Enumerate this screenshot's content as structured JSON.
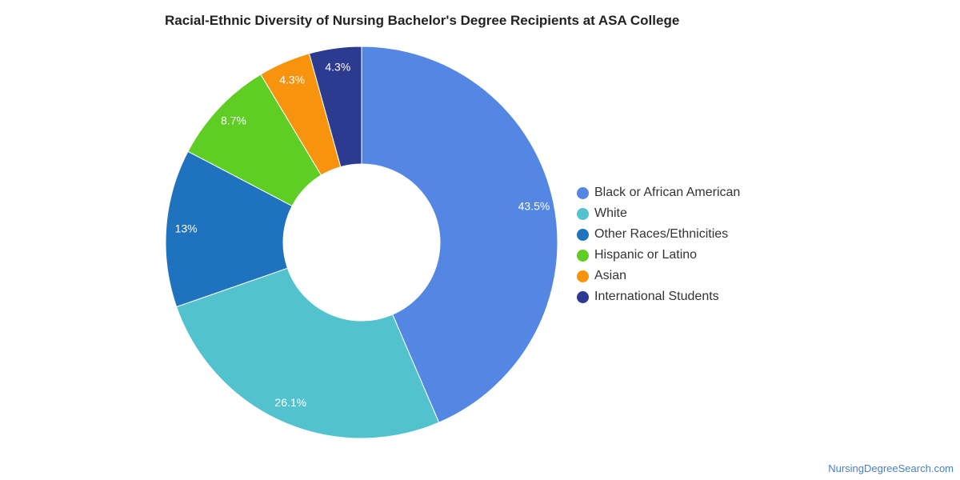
{
  "chart_data": {
    "type": "pie",
    "title": "Racial-Ethnic Diversity of Nursing Bachelor's Degree Recipients at ASA College",
    "categories": [
      "Black or African American",
      "White",
      "Other Races/Ethnicities",
      "Hispanic or Latino",
      "Asian",
      "International Students"
    ],
    "values": [
      43.5,
      26.1,
      13,
      8.7,
      4.3,
      4.3
    ],
    "data_labels": [
      "43.5%",
      "26.1%",
      "13%",
      "8.7%",
      "4.3%",
      "4.3%"
    ],
    "colors": [
      "#5486e3",
      "#52c2ce",
      "#1f72bd",
      "#5ecd24",
      "#f7930d",
      "#2c3a8f"
    ],
    "donut": true,
    "legend_position": "right"
  },
  "footer": {
    "source": "NursingDegreeSearch.com"
  }
}
